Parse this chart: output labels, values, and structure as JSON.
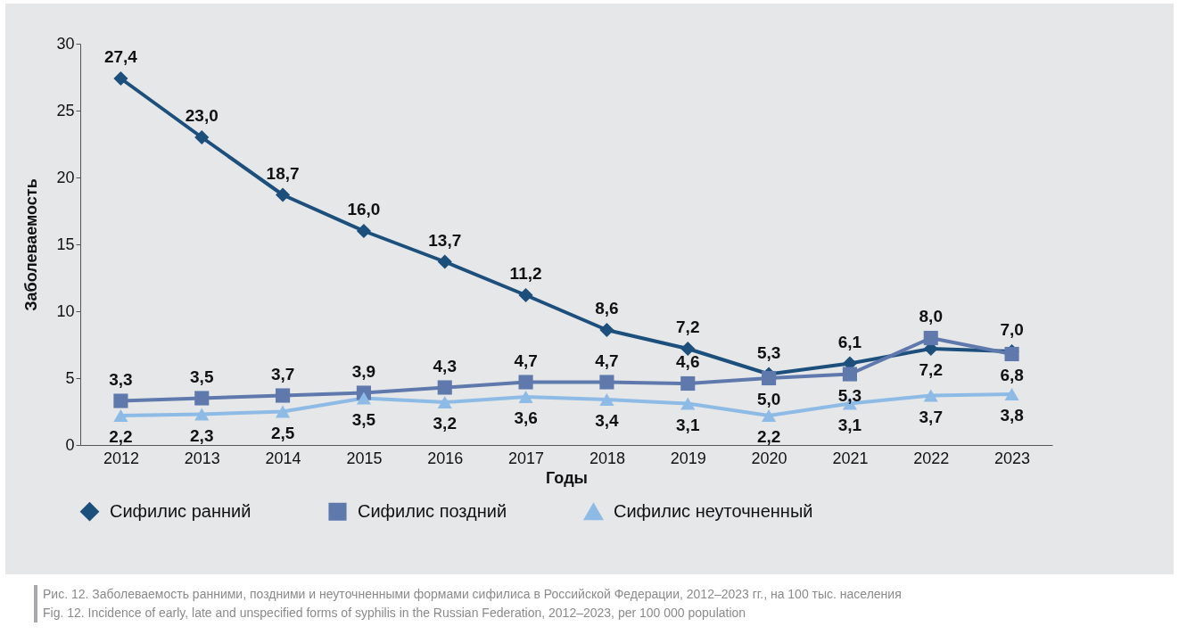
{
  "chart_data": {
    "type": "line",
    "xlabel": "Годы",
    "ylabel": "Заболеваемость",
    "categories": [
      "2012",
      "2013",
      "2014",
      "2015",
      "2016",
      "2017",
      "2018",
      "2019",
      "2020",
      "2021",
      "2022",
      "2023"
    ],
    "series": [
      {
        "name": "Сифилис ранний",
        "color": "#1c4f7c",
        "marker": "diamond",
        "values": [
          27.4,
          23.0,
          18.7,
          16.0,
          13.7,
          11.2,
          8.6,
          7.2,
          5.3,
          6.1,
          7.2,
          7.0
        ],
        "value_labels": [
          "27,4",
          "23,0",
          "18,7",
          "16,0",
          "13,7",
          "11,2",
          "8,6",
          "7,2",
          "5,3",
          "6,1",
          "7,2",
          "7,0"
        ]
      },
      {
        "name": "Сифилис поздний",
        "color": "#5f79ad",
        "marker": "square",
        "values": [
          3.3,
          3.5,
          3.7,
          3.9,
          4.3,
          4.7,
          4.7,
          4.6,
          5.0,
          5.3,
          8.0,
          6.8
        ],
        "value_labels": [
          "3,3",
          "3,5",
          "3,7",
          "3,9",
          "4,3",
          "4,7",
          "4,7",
          "4,6",
          "5,0",
          "5,3",
          "8,0",
          "6,8"
        ]
      },
      {
        "name": "Сифилис неуточненный",
        "color": "#8ebbe6",
        "marker": "triangle",
        "values": [
          2.2,
          2.3,
          2.5,
          3.5,
          3.2,
          3.6,
          3.4,
          3.1,
          2.2,
          3.1,
          3.7,
          3.8
        ],
        "value_labels": [
          "2,2",
          "2,3",
          "2,5",
          "3,5",
          "3,2",
          "3,6",
          "3,4",
          "3,1",
          "2,2",
          "3,1",
          "3,7",
          "3,8"
        ]
      }
    ],
    "ylim": [
      0,
      30
    ],
    "yticks": [
      0,
      5,
      10,
      15,
      20,
      25,
      30
    ],
    "grid": false,
    "legend": "bottom",
    "annotations": [
      "Рис. 12. Заболеваемость ранними, поздними и неуточненными формами сифилиса в Российской Федерации, 2012–2023 гг., на 100 тыс. населения",
      "Fig. 12. Incidence of early, late and unspecified forms of syphilis in the Russian Federation, 2012–2023, per 100 000 population"
    ]
  }
}
